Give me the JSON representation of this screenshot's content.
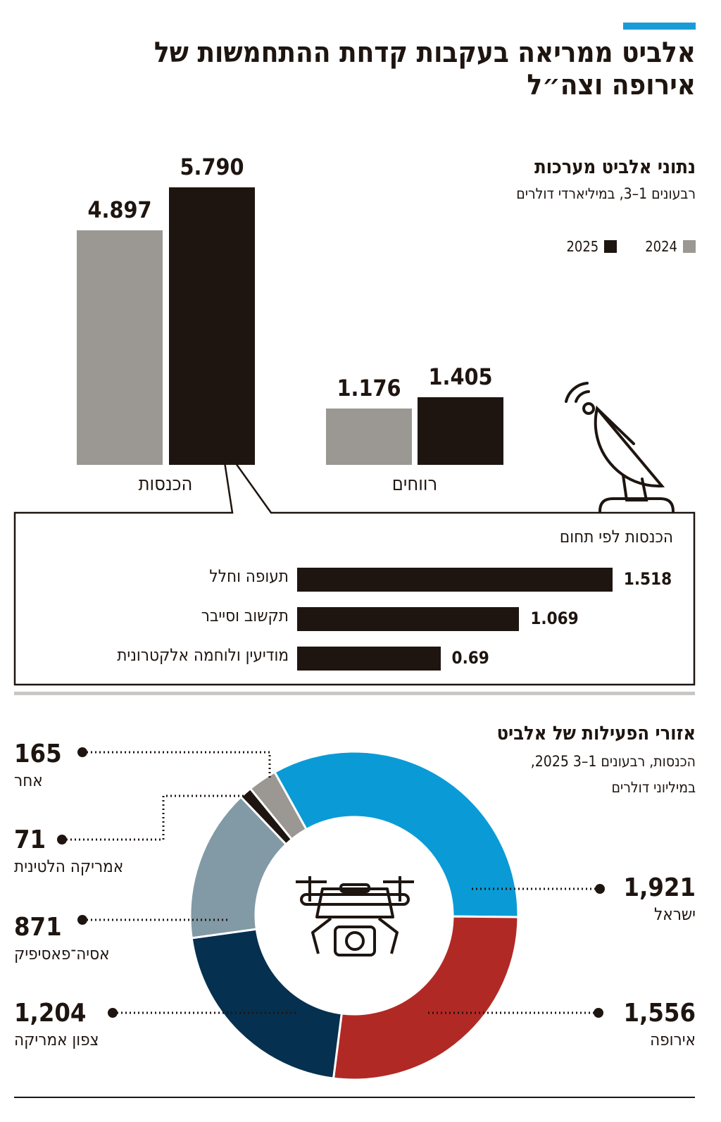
{
  "title": "אלביט ממריאה בעקבות קדחת ההתחמשות של אירופה וצה״ל",
  "colors": {
    "accent": "#1a9bd7",
    "y2024": "#9b9893",
    "y2025": "#1e1510"
  },
  "chart_data": [
    {
      "type": "bar",
      "title": "נתוני אלביט מערכות",
      "subtitle": "רבעונים 1–3, במיליארדי דולרים",
      "categories": [
        "הכנסות",
        "רווחים"
      ],
      "series": [
        {
          "name": "2024",
          "color": "#9b9893",
          "values": [
            4.897,
            1.176
          ],
          "labels": [
            "4.897",
            "1.176"
          ]
        },
        {
          "name": "2025",
          "color": "#1e1510",
          "values": [
            5.79,
            1.405
          ],
          "labels": [
            "5.790",
            "1.405"
          ]
        }
      ],
      "legend": "top-right"
    },
    {
      "type": "bar",
      "orientation": "horizontal",
      "title": "הכנסות לפי תחום",
      "categories": [
        "תעופה וחלל",
        "תקשוב וסייבר",
        "מודיעין ולוחמה אלקטרונית"
      ],
      "values": [
        1.518,
        1.069,
        0.69
      ],
      "labels": [
        "1.518",
        "1.069",
        "0.69"
      ]
    },
    {
      "type": "pie",
      "donut": true,
      "title": "אזורי הפעילות של אלביט",
      "subtitle": "הכנסות, רבעונים 1–3 2025,",
      "subtitle2": "במיליוני דולרים",
      "slices": [
        {
          "name": "ישראל",
          "value": 1921,
          "label": "1,921",
          "color": "#0a9bd6"
        },
        {
          "name": "אירופה",
          "value": 1556,
          "label": "1,556",
          "color": "#b12925"
        },
        {
          "name": "צפון אמריקה",
          "value": 1204,
          "label": "1,204",
          "color": "#06304f"
        },
        {
          "name": "אסיה־פאסיפיק",
          "value": 871,
          "label": "871",
          "color": "#8299a6"
        },
        {
          "name": "אמריקה הלטינית",
          "value": 71,
          "label": "71",
          "color": "#1e1510"
        },
        {
          "name": "אחר",
          "value": 165,
          "label": "165",
          "color": "#9b9893"
        }
      ]
    }
  ]
}
